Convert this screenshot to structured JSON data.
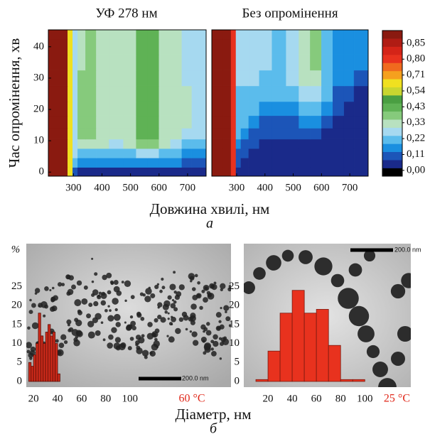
{
  "chart_data": [
    {
      "type": "heatmap",
      "title": "УФ 278 нм",
      "ylabel": "Час опромінення, хв",
      "xlabel": "Довжина хвилі, нм",
      "subfigure_label": "а",
      "x": [
        235,
        270,
        290,
        305,
        325,
        360,
        400,
        450,
        500,
        540,
        580,
        620,
        660,
        700,
        730
      ],
      "y": [
        0,
        3,
        6,
        9,
        12,
        16,
        20,
        25,
        30,
        35,
        40,
        45
      ],
      "z": [
        [
          0.95,
          0.95,
          0.6,
          0.1,
          0.07,
          0.05,
          0.05,
          0.05,
          0.05,
          0.05,
          0.05,
          0.05,
          0.05,
          0.05,
          0.05
        ],
        [
          0.95,
          0.95,
          0.6,
          0.2,
          0.16,
          0.14,
          0.13,
          0.13,
          0.14,
          0.15,
          0.15,
          0.14,
          0.13,
          0.12,
          0.12
        ],
        [
          0.95,
          0.95,
          0.6,
          0.26,
          0.24,
          0.22,
          0.2,
          0.2,
          0.21,
          0.26,
          0.26,
          0.2,
          0.19,
          0.17,
          0.16
        ],
        [
          0.95,
          0.95,
          0.6,
          0.28,
          0.3,
          0.32,
          0.3,
          0.28,
          0.3,
          0.36,
          0.37,
          0.3,
          0.26,
          0.24,
          0.22
        ],
        [
          0.95,
          0.95,
          0.6,
          0.28,
          0.36,
          0.38,
          0.33,
          0.32,
          0.34,
          0.42,
          0.43,
          0.33,
          0.31,
          0.28,
          0.26
        ],
        [
          0.95,
          0.95,
          0.6,
          0.28,
          0.37,
          0.39,
          0.34,
          0.33,
          0.35,
          0.44,
          0.45,
          0.34,
          0.32,
          0.3,
          0.27
        ],
        [
          0.95,
          0.95,
          0.6,
          0.29,
          0.37,
          0.38,
          0.34,
          0.33,
          0.35,
          0.44,
          0.45,
          0.34,
          0.32,
          0.3,
          0.27
        ],
        [
          0.95,
          0.95,
          0.6,
          0.29,
          0.36,
          0.37,
          0.34,
          0.33,
          0.35,
          0.43,
          0.44,
          0.34,
          0.32,
          0.3,
          0.27
        ],
        [
          0.95,
          0.95,
          0.6,
          0.29,
          0.36,
          0.36,
          0.33,
          0.33,
          0.35,
          0.43,
          0.44,
          0.34,
          0.32,
          0.29,
          0.27
        ],
        [
          0.95,
          0.95,
          0.6,
          0.29,
          0.35,
          0.36,
          0.33,
          0.32,
          0.34,
          0.42,
          0.43,
          0.33,
          0.31,
          0.29,
          0.26
        ],
        [
          0.95,
          0.95,
          0.6,
          0.28,
          0.35,
          0.36,
          0.33,
          0.32,
          0.34,
          0.42,
          0.43,
          0.33,
          0.31,
          0.29,
          0.26
        ],
        [
          0.95,
          0.95,
          0.6,
          0.28,
          0.35,
          0.36,
          0.33,
          0.32,
          0.34,
          0.42,
          0.43,
          0.33,
          0.31,
          0.29,
          0.26
        ]
      ],
      "xlim": [
        212,
        765
      ],
      "xticks": [
        300,
        400,
        500,
        600,
        700
      ],
      "ylim": [
        -1.3,
        45.4
      ],
      "yticks": [
        0,
        10,
        20,
        30,
        40
      ]
    },
    {
      "type": "heatmap",
      "title": "Без опромінення",
      "x": [
        235,
        270,
        290,
        305,
        325,
        360,
        400,
        450,
        500,
        540,
        580,
        620,
        660,
        700,
        730
      ],
      "y": [
        0,
        3,
        6,
        9,
        12,
        16,
        20,
        25,
        30,
        35,
        40,
        45
      ],
      "z": [
        [
          0.95,
          0.95,
          0.8,
          0.05,
          0.04,
          0.04,
          0.04,
          0.04,
          0.04,
          0.04,
          0.04,
          0.04,
          0.04,
          0.04,
          0.04
        ],
        [
          0.95,
          0.95,
          0.8,
          0.08,
          0.06,
          0.05,
          0.05,
          0.05,
          0.05,
          0.05,
          0.05,
          0.05,
          0.05,
          0.05,
          0.05
        ],
        [
          0.95,
          0.95,
          0.8,
          0.12,
          0.09,
          0.06,
          0.05,
          0.05,
          0.05,
          0.05,
          0.05,
          0.05,
          0.05,
          0.05,
          0.05
        ],
        [
          0.95,
          0.95,
          0.8,
          0.16,
          0.12,
          0.08,
          0.06,
          0.06,
          0.06,
          0.06,
          0.06,
          0.05,
          0.05,
          0.05,
          0.05
        ],
        [
          0.95,
          0.95,
          0.8,
          0.19,
          0.15,
          0.1,
          0.08,
          0.08,
          0.08,
          0.09,
          0.09,
          0.06,
          0.05,
          0.05,
          0.05
        ],
        [
          0.95,
          0.95,
          0.8,
          0.21,
          0.19,
          0.14,
          0.1,
          0.1,
          0.11,
          0.13,
          0.13,
          0.09,
          0.06,
          0.05,
          0.05
        ],
        [
          0.95,
          0.95,
          0.8,
          0.23,
          0.22,
          0.19,
          0.15,
          0.14,
          0.16,
          0.2,
          0.2,
          0.14,
          0.09,
          0.06,
          0.05
        ],
        [
          0.95,
          0.95,
          0.8,
          0.24,
          0.24,
          0.23,
          0.21,
          0.2,
          0.22,
          0.27,
          0.27,
          0.19,
          0.12,
          0.09,
          0.07
        ],
        [
          0.95,
          0.95,
          0.8,
          0.25,
          0.25,
          0.25,
          0.24,
          0.23,
          0.25,
          0.31,
          0.31,
          0.22,
          0.15,
          0.13,
          0.12
        ],
        [
          0.95,
          0.95,
          0.8,
          0.25,
          0.25,
          0.25,
          0.25,
          0.24,
          0.26,
          0.32,
          0.36,
          0.23,
          0.16,
          0.15,
          0.14
        ],
        [
          0.95,
          0.95,
          0.8,
          0.25,
          0.25,
          0.25,
          0.25,
          0.24,
          0.26,
          0.32,
          0.37,
          0.23,
          0.16,
          0.15,
          0.15
        ],
        [
          0.95,
          0.95,
          0.8,
          0.25,
          0.25,
          0.25,
          0.25,
          0.24,
          0.26,
          0.32,
          0.37,
          0.23,
          0.16,
          0.15,
          0.15
        ]
      ],
      "xlim": [
        212,
        765
      ],
      "xticks": [
        300,
        400,
        500,
        600,
        700
      ],
      "ylim": [
        -1.3,
        45.4
      ],
      "colorbar": {
        "clim": [
          -0.04,
          0.89
        ],
        "colors": [
          "#000000",
          "#1a2a8a",
          "#1c55b8",
          "#1a8fe0",
          "#5bbcec",
          "#a6d9f0",
          "#b8e1c0",
          "#86ca7c",
          "#5fb255",
          "#4a9f42",
          "#c9d630",
          "#f0e020",
          "#f5a01e",
          "#f06a1e",
          "#e8321e",
          "#d42418",
          "#b01c14",
          "#8a1a10"
        ],
        "ticks": [
          {
            "value": 0,
            "label": "0,00"
          },
          {
            "value": 0.11,
            "label": "0,11"
          },
          {
            "value": 0.22,
            "label": "0,22"
          },
          {
            "value": 0.33,
            "label": "0,33"
          },
          {
            "value": 0.43,
            "label": "0,43"
          },
          {
            "value": 0.54,
            "label": "0,54"
          },
          {
            "value": 0.71,
            "label": "0,71"
          },
          {
            "value": 0.8,
            "label": "0,80"
          },
          {
            "value": 0.85,
            "label": "0,85"
          }
        ]
      }
    },
    {
      "type": "histogram",
      "ylabel": "%",
      "xlabel": "Діаметр, нм",
      "subfigure_label": "б",
      "annotation": "60 °C",
      "scale_bar_label": "200.0 nm",
      "bins": [
        16,
        18,
        20,
        22,
        24,
        26,
        28,
        30,
        32,
        34,
        36,
        38,
        40,
        42
      ],
      "values": [
        5,
        4,
        7,
        10,
        18,
        12,
        10,
        13,
        15,
        12,
        13,
        10,
        2
      ],
      "color": "#cc2a1a",
      "edgecolor": "#5a0e08",
      "xlim": [
        14,
        184
      ],
      "xticks": [
        20,
        40,
        60,
        80,
        100
      ],
      "ylim": [
        -1.5,
        36.3
      ],
      "yticks": [
        0,
        5,
        10,
        15,
        20,
        25
      ]
    },
    {
      "type": "histogram",
      "annotation": "25 °C",
      "scale_bar_label": "200.0 nm",
      "bins": [
        10,
        20,
        30,
        40,
        50,
        60,
        70,
        80,
        90,
        100
      ],
      "values": [
        0.5,
        8,
        18,
        24,
        18,
        19,
        9.5,
        0.5,
        0.5
      ],
      "color": "#e8321e",
      "edgecolor": "#7a1a10",
      "xlim": [
        0,
        138
      ],
      "xticks": [
        20,
        40,
        60,
        80,
        100
      ],
      "ylim": [
        -1.5,
        36.3
      ],
      "yticks": [
        0,
        5,
        10,
        15,
        20,
        25
      ]
    }
  ]
}
